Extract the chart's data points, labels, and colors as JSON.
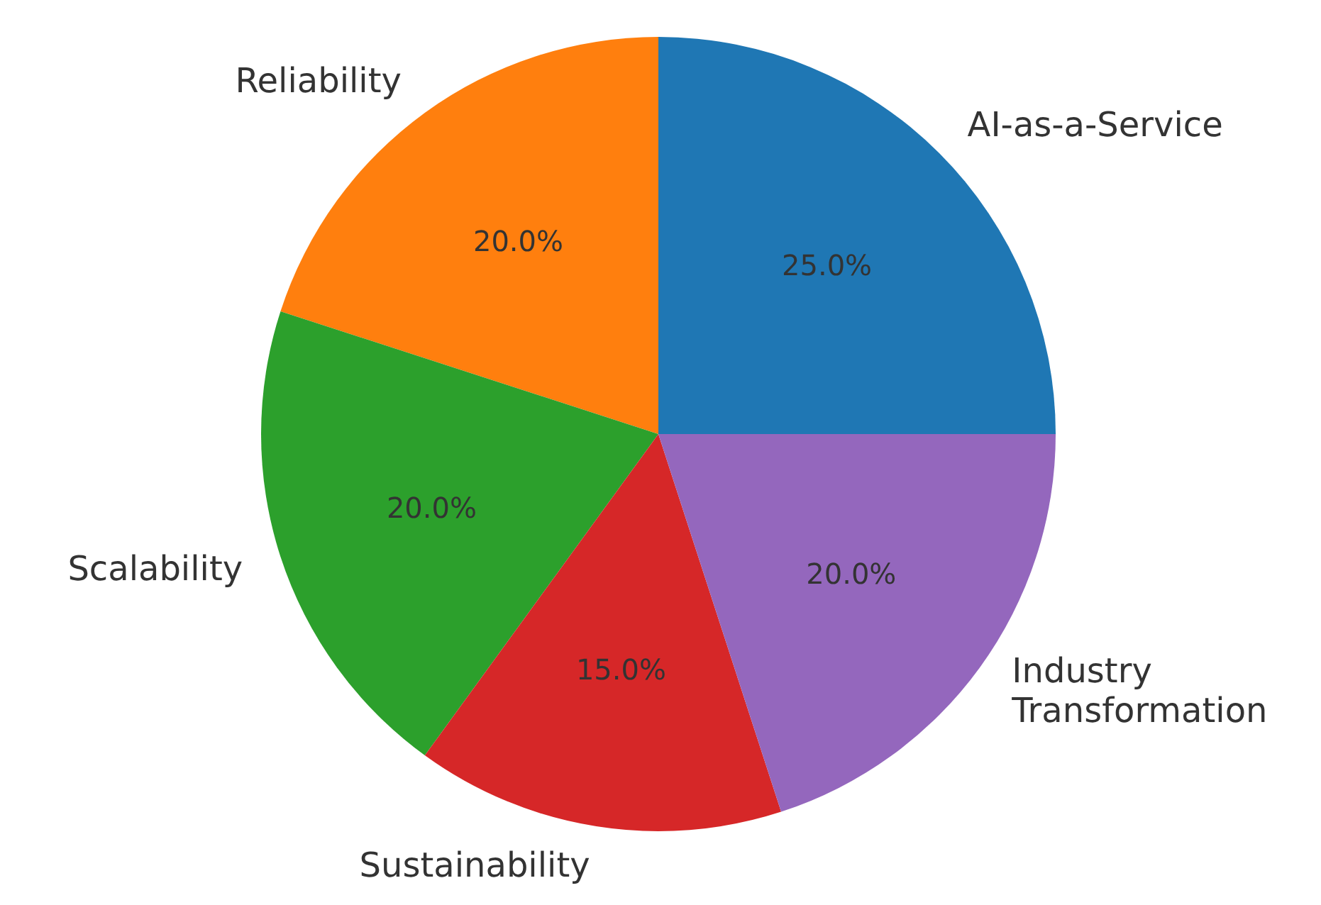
{
  "chart_data": {
    "type": "pie",
    "categories": [
      "AI-as-a-Service",
      "Reliability",
      "Scalability",
      "Sustainability",
      "Industry Transformation"
    ],
    "values": [
      25,
      20,
      20,
      15,
      20
    ],
    "colors": [
      "#1f77b4",
      "#ff7f0e",
      "#2ca02c",
      "#d62728",
      "#9467bd"
    ],
    "value_labels": [
      "25.0%",
      "20.0%",
      "20.0%",
      "15.0%",
      "20.0%"
    ]
  }
}
